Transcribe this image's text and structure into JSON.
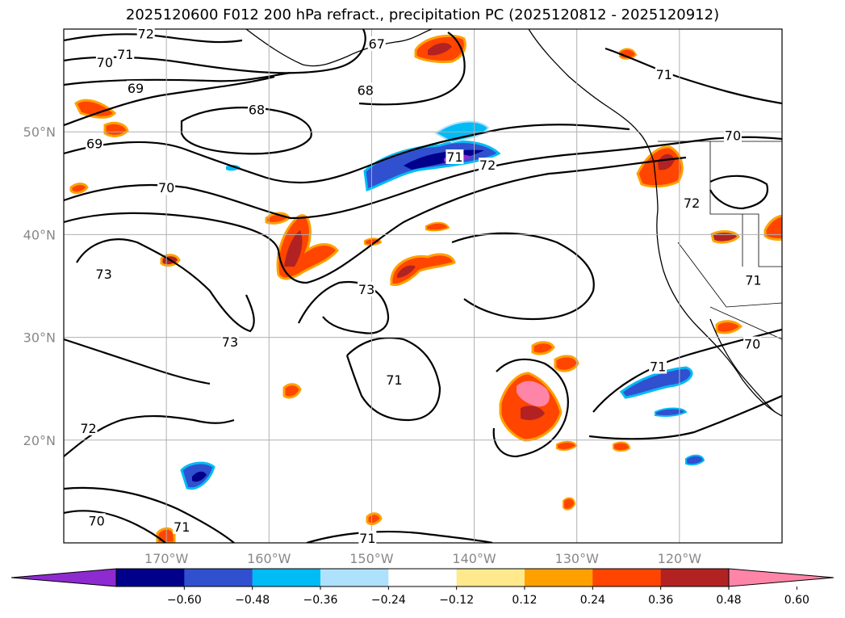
{
  "chart_data": {
    "type": "heatmap",
    "title": "2025120600 F012 200 hPa refract., precipitation PC (2025120812 - 2025120912)",
    "map": {
      "lon_range": [
        -180,
        -110
      ],
      "lat_range": [
        10,
        60
      ],
      "lat_ticks": [
        {
          "value": 50,
          "label": "50°N"
        },
        {
          "value": 40,
          "label": "40°N"
        },
        {
          "value": 30,
          "label": "30°N"
        },
        {
          "value": 20,
          "label": "20°N"
        }
      ],
      "lon_ticks": [
        {
          "value": -170,
          "label": "170°W"
        },
        {
          "value": -160,
          "label": "160°W"
        },
        {
          "value": -150,
          "label": "150°W"
        },
        {
          "value": -140,
          "label": "140°W"
        },
        {
          "value": -130,
          "label": "130°W"
        },
        {
          "value": -120,
          "label": "120°W"
        }
      ],
      "grid": true
    },
    "contour_labels": [
      {
        "text": "72",
        "lon": -172,
        "lat": 59.5
      },
      {
        "text": "71",
        "lon": -174,
        "lat": 57.5
      },
      {
        "text": "70",
        "lon": -176,
        "lat": 56.7
      },
      {
        "text": "67",
        "lon": -149.5,
        "lat": 58.5
      },
      {
        "text": "71",
        "lon": -121.5,
        "lat": 55.5
      },
      {
        "text": "69",
        "lon": -173,
        "lat": 54.2
      },
      {
        "text": "68",
        "lon": -150.6,
        "lat": 54.0
      },
      {
        "text": "68",
        "lon": -161.2,
        "lat": 52.1
      },
      {
        "text": "69",
        "lon": -177,
        "lat": 48.8
      },
      {
        "text": "71",
        "lon": -141.9,
        "lat": 47.5
      },
      {
        "text": "72",
        "lon": -138.7,
        "lat": 46.7
      },
      {
        "text": "70",
        "lon": -114.8,
        "lat": 49.6
      },
      {
        "text": "70",
        "lon": -170,
        "lat": 44.5
      },
      {
        "text": "72",
        "lon": -118.8,
        "lat": 43.0
      },
      {
        "text": "73",
        "lon": -176.1,
        "lat": 36.1
      },
      {
        "text": "73",
        "lon": -150.5,
        "lat": 34.6
      },
      {
        "text": "71",
        "lon": -112.8,
        "lat": 35.5
      },
      {
        "text": "73",
        "lon": -163.8,
        "lat": 29.5
      },
      {
        "text": "70",
        "lon": -112.9,
        "lat": 29.3
      },
      {
        "text": "71",
        "lon": -122.1,
        "lat": 27.1
      },
      {
        "text": "71",
        "lon": -147.8,
        "lat": 25.8
      },
      {
        "text": "72",
        "lon": -177.6,
        "lat": 21.1
      },
      {
        "text": "70",
        "lon": -176.8,
        "lat": 12.1
      },
      {
        "text": "71",
        "lon": -168.5,
        "lat": 11.5
      },
      {
        "text": "71",
        "lon": -150.4,
        "lat": 10.4
      }
    ],
    "colorbar": {
      "ticks": [
        "−0.60",
        "−0.48",
        "−0.36",
        "−0.24",
        "−0.12",
        "0.12",
        "0.24",
        "0.36",
        "0.48",
        "0.60"
      ],
      "colors": [
        "#8e2bd0",
        "#00008b",
        "#3050d0",
        "#00bbf5",
        "#aee1fb",
        "#ffffff",
        "#ffe98c",
        "#ffa000",
        "#ff4500",
        "#b22222",
        "#ff85a8"
      ],
      "extend": "both"
    }
  }
}
